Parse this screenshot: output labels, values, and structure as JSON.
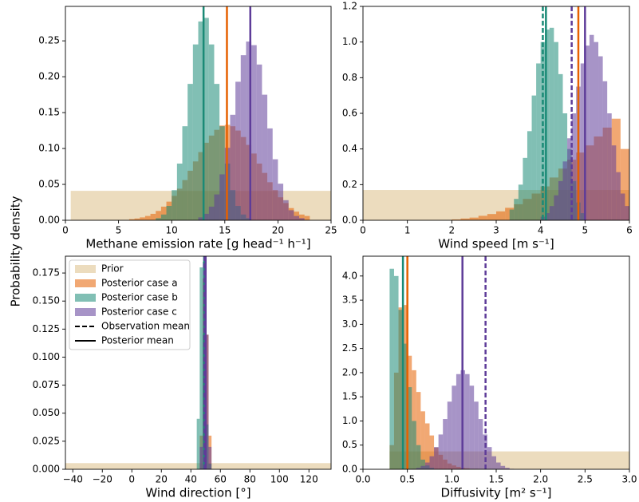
{
  "ylabel": "Probability density",
  "chart_data": [
    {
      "type": "histogram",
      "xlabel": "Methane emission rate [g head⁻¹ h⁻¹]",
      "xlim": [
        0,
        25
      ],
      "ylim": [
        0,
        0.298
      ],
      "xticks": [
        0,
        5,
        10,
        15,
        20,
        25
      ],
      "yticks": [
        {
          "value": 0,
          "label": "0.00"
        },
        {
          "value": 0.05,
          "label": "0.05"
        },
        {
          "value": 0.1,
          "label": "0.10"
        },
        {
          "value": 0.15,
          "label": "0.15"
        },
        {
          "value": 0.2,
          "label": "0.20"
        },
        {
          "value": 0.25,
          "label": "0.25"
        }
      ],
      "series": [
        {
          "name": "Prior",
          "color": "#dcc088",
          "bins": [
            0.5,
            25
          ],
          "values": [
            0.041
          ]
        },
        {
          "name": "Posterior case a",
          "color": "#e66100",
          "mean": 15.2,
          "bins": [
            6,
            6.5,
            7,
            7.5,
            8,
            8.5,
            9,
            9.5,
            10,
            10.5,
            11,
            11.5,
            12,
            12.5,
            13,
            13.5,
            14,
            14.5,
            15,
            15.5,
            16,
            16.5,
            17,
            17.5,
            18,
            18.5,
            19,
            19.5,
            20,
            20.5,
            21,
            21.5,
            22,
            22.5,
            23
          ],
          "values": [
            0.0016,
            0.0025,
            0.004,
            0.006,
            0.009,
            0.013,
            0.019,
            0.026,
            0.034,
            0.044,
            0.056,
            0.069,
            0.082,
            0.095,
            0.108,
            0.118,
            0.126,
            0.132,
            0.133,
            0.131,
            0.125,
            0.116,
            0.105,
            0.093,
            0.079,
            0.066,
            0.053,
            0.042,
            0.032,
            0.024,
            0.017,
            0.012,
            0.008,
            0.006
          ]
        },
        {
          "name": "Posterior case b",
          "color": "#1a8a76",
          "mean": 13.0,
          "bins": [
            8.5,
            9,
            9.5,
            10,
            10.5,
            11,
            11.5,
            12,
            12.5,
            13,
            13.5,
            14,
            14.5,
            15,
            15.5,
            16,
            16.5,
            17,
            17.5
          ],
          "values": [
            0.003,
            0.008,
            0.02,
            0.042,
            0.079,
            0.131,
            0.19,
            0.245,
            0.277,
            0.282,
            0.245,
            0.19,
            0.131,
            0.079,
            0.042,
            0.02,
            0.008,
            0.003
          ]
        },
        {
          "name": "Posterior case c",
          "color": "#5e3c99",
          "mean": 17.4,
          "bins": [
            12.5,
            13,
            13.5,
            14,
            14.5,
            15,
            15.5,
            16,
            16.5,
            17,
            17.5,
            18,
            18.5,
            19,
            19.5,
            20,
            20.5,
            21,
            21.5,
            22,
            22.5
          ],
          "values": [
            0.004,
            0.009,
            0.019,
            0.036,
            0.064,
            0.101,
            0.147,
            0.193,
            0.23,
            0.249,
            0.244,
            0.217,
            0.175,
            0.128,
            0.085,
            0.051,
            0.028,
            0.014,
            0.006,
            0.003
          ]
        }
      ]
    },
    {
      "type": "histogram",
      "xlabel": "Wind speed [m s⁻¹]",
      "xlim": [
        0,
        6
      ],
      "ylim": [
        0,
        1.2
      ],
      "xticks": [
        0,
        1,
        2,
        3,
        4,
        5,
        6
      ],
      "yticks": [
        {
          "value": 0,
          "label": "0.0"
        },
        {
          "value": 0.2,
          "label": "0.2"
        },
        {
          "value": 0.4,
          "label": "0.4"
        },
        {
          "value": 0.6,
          "label": "0.6"
        },
        {
          "value": 0.8,
          "label": "0.8"
        },
        {
          "value": 1,
          "label": "1.0"
        },
        {
          "value": 1.2,
          "label": "1.2"
        }
      ],
      "series": [
        {
          "name": "Prior",
          "color": "#dcc088",
          "bins": [
            0,
            6
          ],
          "values": [
            0.17
          ]
        },
        {
          "name": "Posterior case a",
          "color": "#e66100",
          "mean": 4.85,
          "bins": [
            2,
            2.2,
            2.4,
            2.6,
            2.8,
            3,
            3.2,
            3.4,
            3.6,
            3.8,
            4,
            4.2,
            4.4,
            4.6,
            4.8,
            5,
            5.2,
            5.4,
            5.6,
            5.8,
            6
          ],
          "values": [
            0.005,
            0.01,
            0.015,
            0.025,
            0.035,
            0.05,
            0.07,
            0.09,
            0.12,
            0.15,
            0.19,
            0.24,
            0.29,
            0.34,
            0.38,
            0.42,
            0.47,
            0.52,
            0.57,
            0.4
          ]
        },
        {
          "name": "Posterior case b",
          "color": "#1a8a76",
          "mean": 4.12,
          "observation_mean": 4.05,
          "bins": [
            3.3,
            3.4,
            3.5,
            3.6,
            3.7,
            3.8,
            3.9,
            4,
            4.1,
            4.2,
            4.3,
            4.4,
            4.5,
            4.6,
            4.7,
            4.8,
            4.9,
            5
          ],
          "values": [
            0.06,
            0.12,
            0.2,
            0.35,
            0.5,
            0.7,
            0.88,
            1,
            1.07,
            1.08,
            1,
            0.82,
            0.6,
            0.4,
            0.22,
            0.1,
            0.04
          ]
        },
        {
          "name": "Posterior case c",
          "color": "#5e3c99",
          "mean": 5.0,
          "observation_mean": 4.7,
          "bins": [
            4,
            4.1,
            4.2,
            4.3,
            4.4,
            4.5,
            4.6,
            4.7,
            4.8,
            4.9,
            5,
            5.1,
            5.2,
            5.3,
            5.4,
            5.5,
            5.6,
            5.7,
            5.8,
            5.9,
            6
          ],
          "values": [
            0.02,
            0.04,
            0.08,
            0.14,
            0.22,
            0.33,
            0.46,
            0.6,
            0.75,
            0.88,
            0.98,
            1.04,
            1,
            0.92,
            0.78,
            0.6,
            0.42,
            0.27,
            0.15,
            0.08
          ]
        }
      ]
    },
    {
      "type": "histogram",
      "xlabel": "Wind direction [°]",
      "xlim": [
        -45,
        135
      ],
      "ylim": [
        0,
        0.19
      ],
      "xticks": [
        {
          "value": -40,
          "label": "−40"
        },
        {
          "value": -20,
          "label": "−20"
        },
        0,
        20,
        40,
        60,
        80,
        100,
        120
      ],
      "yticks": [
        {
          "value": 0,
          "label": "0.000"
        },
        {
          "value": 0.025,
          "label": "0.025"
        },
        {
          "value": 0.05,
          "label": "0.050"
        },
        {
          "value": 0.075,
          "label": "0.075"
        },
        {
          "value": 0.1,
          "label": "0.100"
        },
        {
          "value": 0.125,
          "label": "0.125"
        },
        {
          "value": 0.15,
          "label": "0.150"
        },
        {
          "value": 0.175,
          "label": "0.175"
        }
      ],
      "legend": "upper left",
      "line_legend": [
        {
          "name": "Observation mean",
          "dash": true
        },
        {
          "name": "Posterior mean",
          "dash": false
        }
      ],
      "series": [
        {
          "name": "Prior",
          "color": "#dcc088",
          "bins": [
            -45,
            135
          ],
          "values": [
            0.0055
          ]
        },
        {
          "name": "Posterior case a",
          "color": "#e66100",
          "mean": 49.5,
          "bins": [
            46,
            48,
            50,
            52,
            54
          ],
          "values": [
            0.03,
            0.17,
            0.12,
            0.03
          ]
        },
        {
          "name": "Posterior case b",
          "color": "#1a8a76",
          "mean": 49,
          "bins": [
            44,
            46,
            48,
            50,
            52,
            54
          ],
          "values": [
            0.045,
            0.18,
            0.12,
            0.04,
            0.005
          ]
        },
        {
          "name": "Posterior case c",
          "color": "#5e3c99",
          "mean": 50,
          "observation_mean": 49.3,
          "bins": [
            46,
            48,
            50,
            52,
            54
          ],
          "values": [
            0.02,
            0.185,
            0.12,
            0.02
          ]
        }
      ]
    },
    {
      "type": "histogram",
      "xlabel": "Diffusivity [m² s⁻¹]",
      "xlim": [
        0,
        3
      ],
      "ylim": [
        0,
        4.41
      ],
      "xticks": [
        {
          "value": 0,
          "label": "0.0"
        },
        0.5,
        {
          "value": 1,
          "label": "1.0"
        },
        1.5,
        {
          "value": 2,
          "label": "2.0"
        },
        2.5,
        {
          "value": 3,
          "label": "3.0"
        }
      ],
      "yticks": [
        {
          "value": 0,
          "label": "0.0"
        },
        0.5,
        {
          "value": 1,
          "label": "1.0"
        },
        1.5,
        {
          "value": 2,
          "label": "2.0"
        },
        2.5,
        {
          "value": 3,
          "label": "3.0"
        },
        3.5,
        {
          "value": 4,
          "label": "4.0"
        }
      ],
      "series": [
        {
          "name": "Prior",
          "color": "#dcc088",
          "bins": [
            0.3,
            3
          ],
          "values": [
            0.37
          ]
        },
        {
          "name": "Posterior case a",
          "color": "#e66100",
          "mean": 0.5,
          "bins": [
            0.3,
            0.35,
            0.4,
            0.45,
            0.5,
            0.55,
            0.6,
            0.65,
            0.7,
            0.75,
            0.8,
            0.85,
            0.9,
            0.95,
            1,
            1.05,
            1.1,
            1.15,
            1.2,
            1.25,
            1.3,
            1.35,
            1.4
          ],
          "values": [
            0.5,
            2,
            3.35,
            3.4,
            2.35,
            2.05,
            1.6,
            1.2,
            0.95,
            0.7,
            0.45,
            0.3,
            0.2,
            0.12,
            0.08,
            0.05,
            0.03,
            0.02,
            0.01,
            0.01,
            0.005,
            0.003
          ]
        },
        {
          "name": "Posterior case b",
          "color": "#1a8a76",
          "mean": 0.45,
          "bins": [
            0.3,
            0.35,
            0.4,
            0.45,
            0.5,
            0.55,
            0.6,
            0.65,
            0.7,
            0.75,
            0.8
          ],
          "values": [
            4.15,
            4,
            3.3,
            2.6,
            1.7,
            1,
            0.5,
            0.2,
            0.08,
            0.03
          ]
        },
        {
          "name": "Posterior case c",
          "color": "#5e3c99",
          "mean": 1.12,
          "observation_mean": 1.38,
          "bins": [
            0.55,
            0.6,
            0.65,
            0.7,
            0.75,
            0.8,
            0.85,
            0.9,
            0.95,
            1,
            1.05,
            1.1,
            1.15,
            1.2,
            1.25,
            1.3,
            1.35,
            1.4,
            1.45,
            1.5,
            1.55,
            1.6,
            1.65,
            1.7
          ],
          "values": [
            0.01,
            0.03,
            0.07,
            0.14,
            0.27,
            0.46,
            0.72,
            1.04,
            1.4,
            1.73,
            1.97,
            2.05,
            1.97,
            1.73,
            1.4,
            1.04,
            0.72,
            0.46,
            0.27,
            0.14,
            0.07,
            0.03,
            0.01
          ]
        }
      ]
    }
  ]
}
